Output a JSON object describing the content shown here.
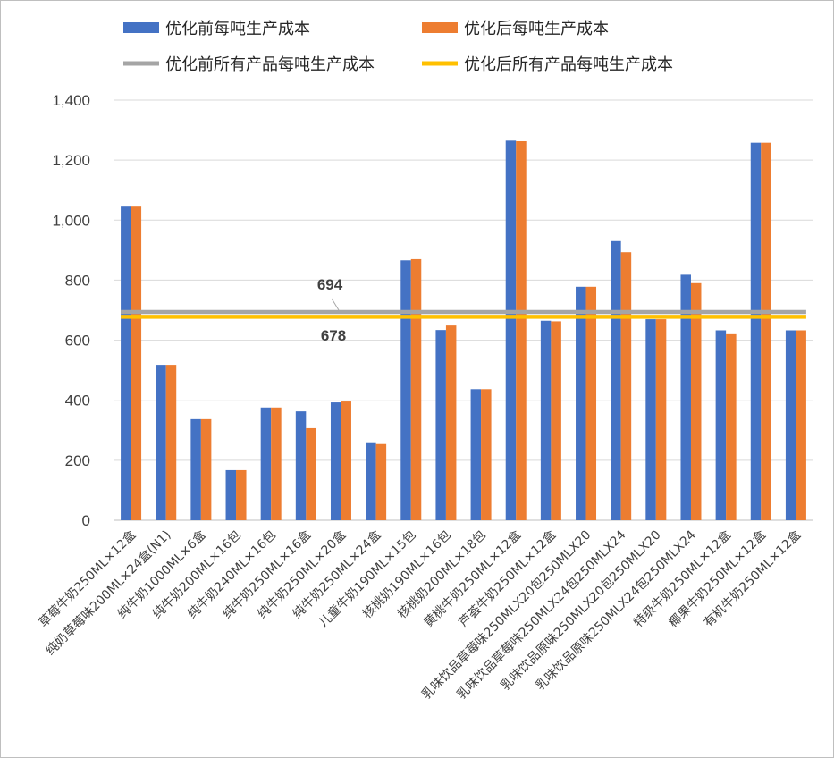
{
  "chart_data": {
    "type": "bar",
    "title": "",
    "xlabel": "",
    "ylabel": "",
    "ylim": [
      0,
      1400
    ],
    "yticks": [
      0,
      200,
      400,
      600,
      800,
      1000,
      1200,
      1400
    ],
    "ytick_labels": [
      "0",
      "200",
      "400",
      "600",
      "800",
      "1,000",
      "1,200",
      "1,400"
    ],
    "grid": true,
    "legend_position": "top",
    "categories": [
      "草莓牛奶250ML×12盒",
      "纯奶草莓味200ML×24盒(N1)",
      "纯牛奶1000ML×6盒",
      "纯牛奶200ML×16包",
      "纯牛奶240ML×16包",
      "纯牛奶250ML×16盒",
      "纯牛奶250ML×20盒",
      "纯牛奶250ML×24盒",
      "儿童牛奶190ML×15包",
      "核桃奶190ML×16包",
      "核桃奶200ML×18包",
      "黄桃牛奶250ML×12盒",
      "芦荟牛奶250ML×12盒",
      "乳味饮品草莓味250MLX20包250MLX20",
      "乳味饮品草莓味250MLX24包250MLX24",
      "乳味饮品原味250MLX20包250MLX20",
      "乳味饮品原味250MLX24包250MLX24",
      "特级牛奶250ML×12盒",
      "椰果牛奶250ML×12盒",
      "有机牛奶250ML×12盒"
    ],
    "series": [
      {
        "name": "优化前每吨生产成本",
        "color": "#4472C4",
        "values": [
          1045,
          518,
          337,
          167,
          376,
          363,
          393,
          257,
          866,
          634,
          437,
          1265,
          665,
          778,
          930,
          670,
          818,
          633,
          1258,
          633
        ]
      },
      {
        "name": "优化后每吨生产成本",
        "color": "#ED7D31",
        "values": [
          1045,
          518,
          337,
          167,
          376,
          307,
          396,
          254,
          870,
          649,
          437,
          1263,
          663,
          778,
          893,
          670,
          790,
          620,
          1258,
          633
        ]
      }
    ],
    "reference_lines": [
      {
        "name": "优化前所有产品每吨生产成本",
        "value": 694,
        "label": "694",
        "color": "#A5A5A5"
      },
      {
        "name": "优化后所有产品每吨生产成本",
        "value": 678,
        "label": "678",
        "color": "#FFC000"
      }
    ]
  }
}
